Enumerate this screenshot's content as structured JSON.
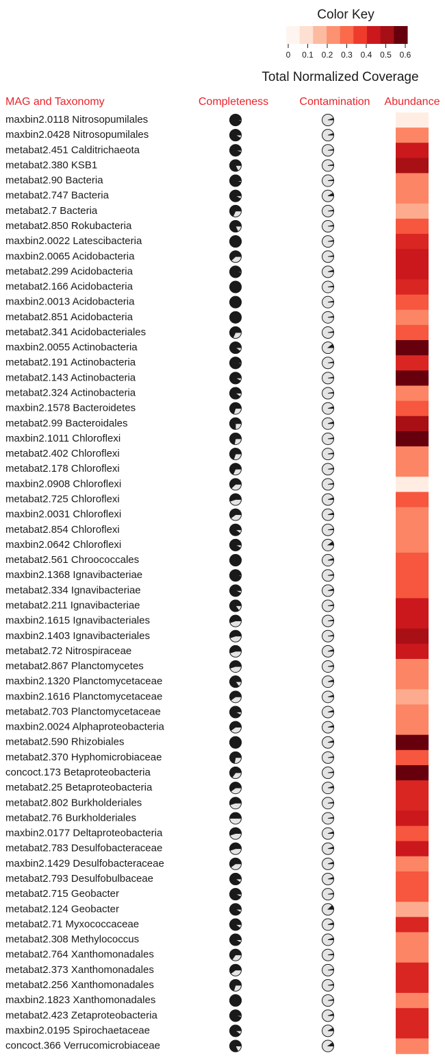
{
  "chart_data": {
    "type": "table",
    "color_key": {
      "title": "Color Key",
      "label": "Total Normalized Coverage",
      "ticks": [
        "0",
        "0.1",
        "0.2",
        "0.3",
        "0.4",
        "0.5",
        "0.6"
      ],
      "range": [
        0,
        0.6
      ],
      "colors": [
        "#fff5f0",
        "#fee0d2",
        "#fcbba1",
        "#fc9272",
        "#fb6a4a",
        "#ef3b2c",
        "#cb181d",
        "#a50f15",
        "#67000d"
      ]
    },
    "headers": {
      "taxonomy": "MAG and Taxonomy",
      "completeness": "Completeness",
      "contamination": "Contamination",
      "abundance": "Abundance"
    },
    "header_color": "#e8232a",
    "pie_fill_color": "#1a1a1a",
    "pie_empty_color": "#e4e4e4",
    "rows": [
      {
        "mag": "maxbin2.0118 Nitrosopumilales",
        "completeness": 0.97,
        "contamination": 0.05,
        "abundance": 0.03
      },
      {
        "mag": "maxbin2.0428 Nitrosopumilales",
        "completeness": 0.92,
        "contamination": 0.05,
        "abundance": 0.25
      },
      {
        "mag": "metabat2.451 Calditrichaeota",
        "completeness": 0.95,
        "contamination": 0.03,
        "abundance": 0.45
      },
      {
        "mag": "metabat2.380 KSB1",
        "completeness": 0.82,
        "contamination": 0.03,
        "abundance": 0.52
      },
      {
        "mag": "metabat2.90 Bacteria",
        "completeness": 0.96,
        "contamination": 0.03,
        "abundance": 0.25
      },
      {
        "mag": "metabat2.747 Bacteria",
        "completeness": 0.92,
        "contamination": 0.08,
        "abundance": 0.25
      },
      {
        "mag": "metabat2.7 Bacteria",
        "completeness": 0.68,
        "contamination": 0.03,
        "abundance": 0.18
      },
      {
        "mag": "metabat2.850 Rokubacteria",
        "completeness": 0.82,
        "contamination": 0.03,
        "abundance": 0.33
      },
      {
        "mag": "maxbin2.0022 Latescibacteria",
        "completeness": 1.0,
        "contamination": 0.03,
        "abundance": 0.42
      },
      {
        "mag": "maxbin2.0065 Acidobacteria",
        "completeness": 0.62,
        "contamination": 0.03,
        "abundance": 0.45
      },
      {
        "mag": "metabat2.299 Acidobacteria",
        "completeness": 0.97,
        "contamination": 0.05,
        "abundance": 0.45
      },
      {
        "mag": "metabat2.166 Acidobacteria",
        "completeness": 0.98,
        "contamination": 0.03,
        "abundance": 0.42
      },
      {
        "mag": "maxbin2.0013 Acidobacteria",
        "completeness": 0.99,
        "contamination": 0.03,
        "abundance": 0.33
      },
      {
        "mag": "metabat2.851 Acidobacteria",
        "completeness": 0.99,
        "contamination": 0.03,
        "abundance": 0.25
      },
      {
        "mag": "metabat2.341 Acidobacteriales",
        "completeness": 0.68,
        "contamination": 0.03,
        "abundance": 0.33
      },
      {
        "mag": "maxbin2.0055 Actinobacteria",
        "completeness": 0.9,
        "contamination": 0.1,
        "abundance": 0.6
      },
      {
        "mag": "metabat2.191 Actinobacteria",
        "completeness": 0.97,
        "contamination": 0.03,
        "abundance": 0.42
      },
      {
        "mag": "metabat2.143 Actinobacteria",
        "completeness": 0.92,
        "contamination": 0.03,
        "abundance": 0.6
      },
      {
        "mag": "metabat2.324 Actinobacteria",
        "completeness": 0.9,
        "contamination": 0.03,
        "abundance": 0.25
      },
      {
        "mag": "maxbin2.1578 Bacteroidetes",
        "completeness": 0.7,
        "contamination": 0.05,
        "abundance": 0.33
      },
      {
        "mag": "metabat2.99 Bacteroidales",
        "completeness": 0.75,
        "contamination": 0.05,
        "abundance": 0.52
      },
      {
        "mag": "maxbin2.1011 Chloroflexi",
        "completeness": 0.72,
        "contamination": 0.03,
        "abundance": 0.6
      },
      {
        "mag": "metabat2.402 Chloroflexi",
        "completeness": 0.7,
        "contamination": 0.03,
        "abundance": 0.25
      },
      {
        "mag": "metabat2.178 Chloroflexi",
        "completeness": 0.68,
        "contamination": 0.03,
        "abundance": 0.25
      },
      {
        "mag": "maxbin2.0908 Chloroflexi",
        "completeness": 0.62,
        "contamination": 0.03,
        "abundance": 0.03
      },
      {
        "mag": "metabat2.725 Chloroflexi",
        "completeness": 0.55,
        "contamination": 0.05,
        "abundance": 0.33
      },
      {
        "mag": "maxbin2.0031 Chloroflexi",
        "completeness": 0.6,
        "contamination": 0.05,
        "abundance": 0.25
      },
      {
        "mag": "metabat2.854 Chloroflexi",
        "completeness": 0.9,
        "contamination": 0.03,
        "abundance": 0.25
      },
      {
        "mag": "maxbin2.0642 Chloroflexi",
        "completeness": 0.92,
        "contamination": 0.1,
        "abundance": 0.25
      },
      {
        "mag": "metabat2.561 Chroococcales",
        "completeness": 0.98,
        "contamination": 0.05,
        "abundance": 0.33
      },
      {
        "mag": "maxbin2.1368 Ignavibacteriae",
        "completeness": 0.97,
        "contamination": 0.03,
        "abundance": 0.33
      },
      {
        "mag": "metabat2.334 Ignavibacteriae",
        "completeness": 0.93,
        "contamination": 0.05,
        "abundance": 0.33
      },
      {
        "mag": "metabat2.211 Ignavibacteriae",
        "completeness": 0.85,
        "contamination": 0.03,
        "abundance": 0.45
      },
      {
        "mag": "maxbin2.1615 Ignavibacteriales",
        "completeness": 0.55,
        "contamination": 0.03,
        "abundance": 0.45
      },
      {
        "mag": "maxbin2.1403 Ignavibacteriales",
        "completeness": 0.55,
        "contamination": 0.03,
        "abundance": 0.52
      },
      {
        "mag": "metabat2.72 Nitrospiraceae",
        "completeness": 0.55,
        "contamination": 0.05,
        "abundance": 0.45
      },
      {
        "mag": "metabat2.867 Planctomycetes",
        "completeness": 0.55,
        "contamination": 0.03,
        "abundance": 0.25
      },
      {
        "mag": "maxbin2.1320 Planctomycetaceae",
        "completeness": 0.85,
        "contamination": 0.05,
        "abundance": 0.25
      },
      {
        "mag": "maxbin2.1616 Planctomycetaceae",
        "completeness": 0.6,
        "contamination": 0.05,
        "abundance": 0.18
      },
      {
        "mag": "metabat2.703 Planctomycetaceae",
        "completeness": 0.92,
        "contamination": 0.05,
        "abundance": 0.25
      },
      {
        "mag": "maxbin2.0024 Alphaproteobacteria",
        "completeness": 0.6,
        "contamination": 0.05,
        "abundance": 0.25
      },
      {
        "mag": "metabat2.590 Rhizobiales",
        "completeness": 1.0,
        "contamination": 0.05,
        "abundance": 0.6
      },
      {
        "mag": "metabat2.370 Hyphomicrobiaceae",
        "completeness": 0.72,
        "contamination": 0.03,
        "abundance": 0.33
      },
      {
        "mag": "concoct.173 Betaproteobacteria",
        "completeness": 0.65,
        "contamination": 0.03,
        "abundance": 0.6
      },
      {
        "mag": "metabat2.25 Betaproteobacteria",
        "completeness": 0.6,
        "contamination": 0.05,
        "abundance": 0.42
      },
      {
        "mag": "metabat2.802 Burkholderiales",
        "completeness": 0.55,
        "contamination": 0.03,
        "abundance": 0.42
      },
      {
        "mag": "metabat2.76 Burkholderiales",
        "completeness": 0.5,
        "contamination": 0.03,
        "abundance": 0.45
      },
      {
        "mag": "maxbin2.0177 Deltaproteobacteria",
        "completeness": 0.55,
        "contamination": 0.05,
        "abundance": 0.33
      },
      {
        "mag": "metabat2.783 Desulfobacteraceae",
        "completeness": 0.55,
        "contamination": 0.05,
        "abundance": 0.45
      },
      {
        "mag": "maxbin2.1429 Desulfobacteraceae",
        "completeness": 0.6,
        "contamination": 0.05,
        "abundance": 0.25
      },
      {
        "mag": "metabat2.793 Desulfobulbaceae",
        "completeness": 0.9,
        "contamination": 0.05,
        "abundance": 0.33
      },
      {
        "mag": "metabat2.715 Geobacter",
        "completeness": 0.93,
        "contamination": 0.03,
        "abundance": 0.33
      },
      {
        "mag": "metabat2.124 Geobacter",
        "completeness": 0.92,
        "contamination": 0.12,
        "abundance": 0.18
      },
      {
        "mag": "metabat2.71 Myxococcaceae",
        "completeness": 0.9,
        "contamination": 0.05,
        "abundance": 0.42
      },
      {
        "mag": "metabat2.308 Methylococcus",
        "completeness": 0.92,
        "contamination": 0.05,
        "abundance": 0.25
      },
      {
        "mag": "metabat2.764 Xanthomonadales",
        "completeness": 0.65,
        "contamination": 0.03,
        "abundance": 0.25
      },
      {
        "mag": "metabat2.373 Xanthomonadales",
        "completeness": 0.6,
        "contamination": 0.03,
        "abundance": 0.42
      },
      {
        "mag": "metabat2.256 Xanthomonadales",
        "completeness": 0.7,
        "contamination": 0.03,
        "abundance": 0.42
      },
      {
        "mag": "maxbin2.1823 Xanthomonadales",
        "completeness": 1.0,
        "contamination": 0.03,
        "abundance": 0.25
      },
      {
        "mag": "metabat2.423 Zetaproteobacteria",
        "completeness": 0.96,
        "contamination": 0.05,
        "abundance": 0.42
      },
      {
        "mag": "maxbin2.0195 Spirochaetaceae",
        "completeness": 0.9,
        "contamination": 0.08,
        "abundance": 0.42
      },
      {
        "mag": "concoct.366 Verrucomicrobiaceae",
        "completeness": 0.82,
        "contamination": 0.1,
        "abundance": 0.25
      }
    ]
  }
}
